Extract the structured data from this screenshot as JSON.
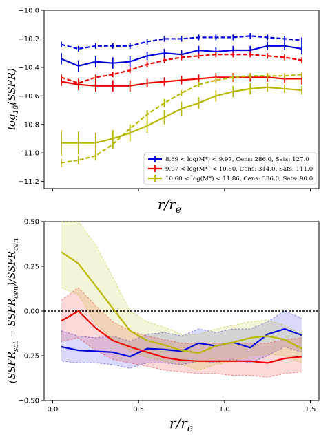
{
  "chart_data": [
    {
      "type": "line",
      "ylabel": "log10(SSFR)",
      "xlabel": "r/re",
      "ylim": [
        -11.25,
        -10.0
      ],
      "xlim": [
        -0.05,
        1.55
      ],
      "yticks": [
        "-10.0",
        "-10.2",
        "-10.4",
        "-10.6",
        "-10.8",
        "-11.0",
        "-11.2"
      ],
      "yticks_values": [
        -10.0,
        -10.2,
        -10.4,
        -10.6,
        -10.8,
        -11.0,
        -11.2
      ],
      "xtick_values": [
        0.0,
        0.5,
        1.0,
        1.5
      ],
      "grid": false,
      "legend_position": "lower-right",
      "legend": [
        "8.69 < log(M*) < 9.97, Cens: 286.0, Sats: 127.0",
        "9.97 < log(M*) < 10.60, Cens: 314.0, Sats: 111.0",
        "10.60 < log(M*) < 11.86, Cens: 336.0, Sats: 90.0"
      ],
      "x": [
        0.05,
        0.15,
        0.25,
        0.35,
        0.45,
        0.55,
        0.65,
        0.75,
        0.85,
        0.95,
        1.05,
        1.15,
        1.25,
        1.35,
        1.45
      ],
      "series": [
        {
          "color": "#0000dd",
          "style": "solid",
          "values": [
            -10.34,
            -10.39,
            -10.36,
            -10.37,
            -10.36,
            -10.32,
            -10.3,
            -10.31,
            -10.28,
            -10.29,
            -10.28,
            -10.28,
            -10.25,
            -10.25,
            -10.27
          ],
          "errors": [
            0.04,
            0.04,
            0.04,
            0.04,
            0.04,
            0.03,
            0.03,
            0.03,
            0.03,
            0.03,
            0.03,
            0.03,
            0.03,
            0.03,
            0.04
          ]
        },
        {
          "color": "#0000dd",
          "style": "dashed",
          "values": [
            -10.24,
            -10.27,
            -10.25,
            -10.25,
            -10.25,
            -10.22,
            -10.2,
            -10.2,
            -10.19,
            -10.19,
            -10.19,
            -10.18,
            -10.19,
            -10.2,
            -10.21
          ],
          "errors": [
            0.02,
            0.02,
            0.02,
            0.02,
            0.02,
            0.02,
            0.02,
            0.02,
            0.02,
            0.02,
            0.02,
            0.02,
            0.02,
            0.02,
            0.02
          ]
        },
        {
          "color": "#ee0000",
          "style": "solid",
          "values": [
            -10.5,
            -10.52,
            -10.53,
            -10.53,
            -10.53,
            -10.51,
            -10.5,
            -10.49,
            -10.48,
            -10.47,
            -10.47,
            -10.47,
            -10.47,
            -10.48,
            -10.48
          ],
          "errors": [
            0.03,
            0.04,
            0.04,
            0.04,
            0.04,
            0.03,
            0.03,
            0.03,
            0.03,
            0.03,
            0.03,
            0.03,
            0.03,
            0.03,
            0.04
          ]
        },
        {
          "color": "#ee0000",
          "style": "dashed",
          "values": [
            -10.47,
            -10.51,
            -10.47,
            -10.45,
            -10.42,
            -10.38,
            -10.35,
            -10.33,
            -10.32,
            -10.31,
            -10.31,
            -10.31,
            -10.32,
            -10.33,
            -10.35
          ],
          "errors": [
            0.02,
            0.02,
            0.02,
            0.02,
            0.02,
            0.02,
            0.02,
            0.02,
            0.02,
            0.02,
            0.02,
            0.02,
            0.02,
            0.02,
            0.02
          ]
        },
        {
          "color": "#b8b800",
          "style": "solid",
          "values": [
            -10.93,
            -10.93,
            -10.93,
            -10.9,
            -10.86,
            -10.81,
            -10.75,
            -10.69,
            -10.65,
            -10.6,
            -10.57,
            -10.55,
            -10.54,
            -10.55,
            -10.56
          ],
          "errors": [
            0.09,
            0.08,
            0.07,
            0.06,
            0.06,
            0.05,
            0.05,
            0.05,
            0.04,
            0.04,
            0.04,
            0.04,
            0.03,
            0.03,
            0.03
          ]
        },
        {
          "color": "#b8b800",
          "style": "dashed",
          "values": [
            -11.07,
            -11.05,
            -11.02,
            -10.94,
            -10.83,
            -10.73,
            -10.65,
            -10.58,
            -10.52,
            -10.49,
            -10.47,
            -10.46,
            -10.46,
            -10.46,
            -10.45
          ],
          "errors": [
            0.03,
            0.03,
            0.03,
            0.03,
            0.03,
            0.03,
            0.03,
            0.02,
            0.02,
            0.02,
            0.02,
            0.02,
            0.02,
            0.02,
            0.02
          ]
        }
      ]
    },
    {
      "type": "line",
      "ylabel": "(SSFRsat − SSFRcen)/SSFRcen",
      "xlabel": "r/re",
      "ylim": [
        -0.5,
        0.5
      ],
      "xlim": [
        -0.05,
        1.55
      ],
      "yticks": [
        "0.50",
        "0.25",
        "0.00",
        "−0.25",
        "−0.50"
      ],
      "yticks_values": [
        0.5,
        0.25,
        0.0,
        -0.25,
        -0.5
      ],
      "xticks": [
        "0.0",
        "0.5",
        "1.0",
        "1.5"
      ],
      "xtick_values": [
        0.0,
        0.5,
        1.0,
        1.5
      ],
      "reference_line_y": 0.0,
      "grid": false,
      "x": [
        0.05,
        0.15,
        0.25,
        0.35,
        0.45,
        0.55,
        0.65,
        0.75,
        0.85,
        0.95,
        1.05,
        1.15,
        1.25,
        1.35,
        1.45
      ],
      "series": [
        {
          "color": "#0000dd",
          "values": [
            -0.2,
            -0.22,
            -0.225,
            -0.23,
            -0.255,
            -0.21,
            -0.215,
            -0.225,
            -0.18,
            -0.195,
            -0.175,
            -0.205,
            -0.13,
            -0.1,
            -0.135
          ],
          "band_upper": [
            -0.11,
            -0.14,
            -0.15,
            -0.14,
            -0.17,
            -0.13,
            -0.12,
            -0.14,
            -0.1,
            -0.12,
            -0.1,
            -0.1,
            -0.06,
            0.0,
            -0.04
          ],
          "band_lower": [
            -0.28,
            -0.29,
            -0.29,
            -0.3,
            -0.32,
            -0.29,
            -0.29,
            -0.3,
            -0.28,
            -0.29,
            -0.27,
            -0.29,
            -0.25,
            -0.2,
            -0.23
          ]
        },
        {
          "color": "#ee0000",
          "values": [
            -0.055,
            0.0,
            -0.095,
            -0.165,
            -0.2,
            -0.23,
            -0.26,
            -0.275,
            -0.28,
            -0.28,
            -0.28,
            -0.28,
            -0.29,
            -0.265,
            -0.255
          ],
          "band_upper": [
            0.06,
            0.13,
            0.03,
            -0.06,
            -0.11,
            -0.14,
            -0.16,
            -0.18,
            -0.18,
            -0.18,
            -0.18,
            -0.18,
            -0.18,
            -0.16,
            -0.15
          ],
          "band_lower": [
            -0.17,
            -0.15,
            -0.22,
            -0.27,
            -0.29,
            -0.31,
            -0.33,
            -0.34,
            -0.35,
            -0.35,
            -0.36,
            -0.36,
            -0.37,
            -0.35,
            -0.34
          ]
        },
        {
          "color": "#b8b800",
          "values": [
            0.33,
            0.265,
            0.14,
            0.015,
            -0.11,
            -0.165,
            -0.19,
            -0.22,
            -0.235,
            -0.195,
            -0.175,
            -0.15,
            -0.14,
            -0.16,
            -0.21
          ],
          "band_upper": [
            0.5,
            0.5,
            0.37,
            0.19,
            0.0,
            -0.06,
            -0.09,
            -0.13,
            -0.13,
            -0.1,
            -0.08,
            -0.06,
            -0.05,
            -0.08,
            -0.13
          ],
          "band_lower": [
            0.13,
            0.09,
            -0.07,
            -0.16,
            -0.22,
            -0.26,
            -0.28,
            -0.3,
            -0.33,
            -0.3,
            -0.28,
            -0.25,
            -0.24,
            -0.25,
            -0.29
          ]
        }
      ]
    }
  ]
}
